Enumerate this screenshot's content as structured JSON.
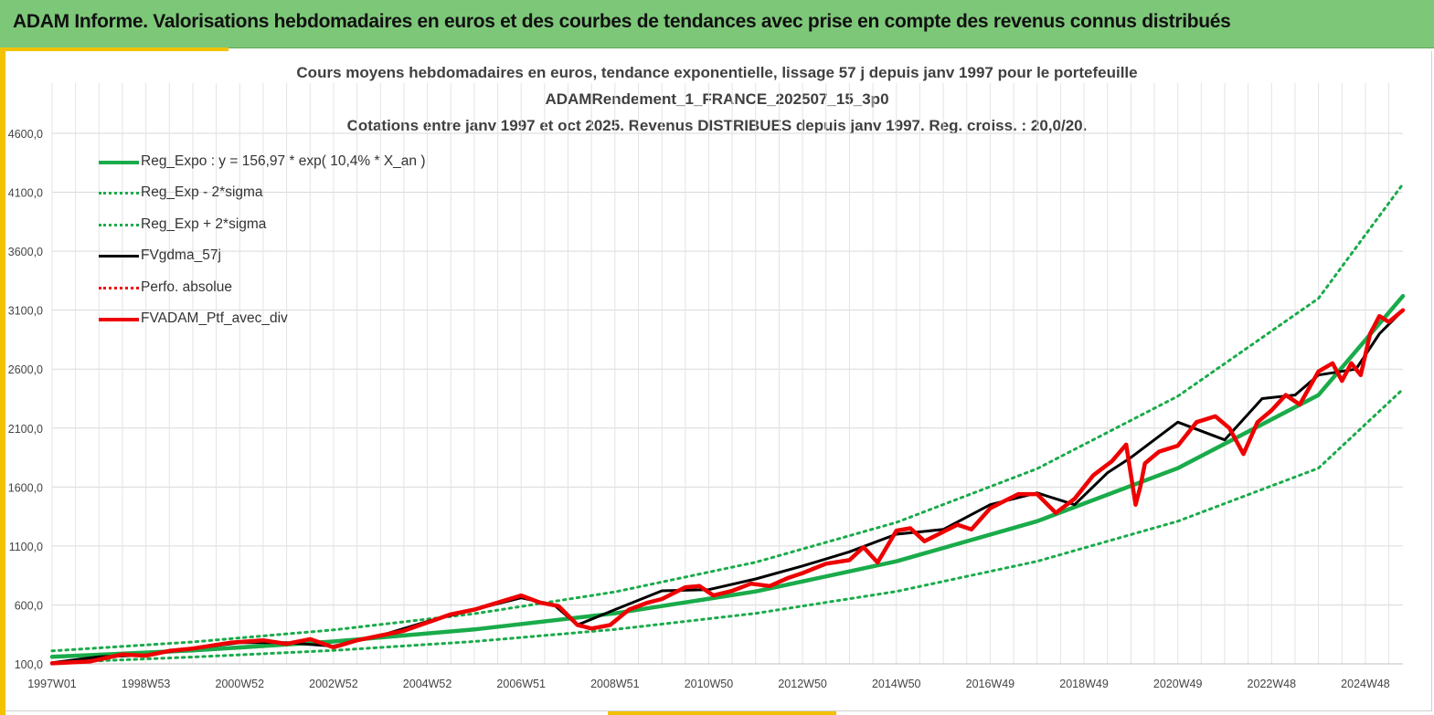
{
  "header": {
    "title": "ADAM Informe. Valorisations hebdomadaires en euros et des courbes de tendances avec prise en compte des revenus connus distribués"
  },
  "colors": {
    "banner": "#7dc779",
    "accent": "#f2c200",
    "trend": "#1aab4a",
    "smoothed": "#000000",
    "portfolio": "#ee0000"
  },
  "chart_data": {
    "type": "line",
    "title_lines": [
      "Cours moyens hebdomadaires  en euros, tendance exponentielle, lissage 57 j depuis janv 1997 pour le portefeuille",
      "ADAMRendement_1_FRANCE_202507_15_3p0",
      "Cotations  entre janv 1997 et oct 2025. Revenus DISTRIBUES depuis janv 1997. Reg. croiss. : 20,0/20."
    ],
    "x_tick_labels": [
      "1997W01",
      "1998W53",
      "2000W52",
      "2002W52",
      "2004W52",
      "2006W51",
      "2008W51",
      "2010W50",
      "2012W50",
      "2014W50",
      "2016W49",
      "2018W49",
      "2020W49",
      "2022W48",
      "2024W48"
    ],
    "x_range_years": [
      1997.0,
      2025.8
    ],
    "y_tick_labels": [
      "100,0",
      "600,0",
      "1100,0",
      "1600,0",
      "2100,0",
      "2600,0",
      "3100,0",
      "3600,0",
      "4100,0",
      "4600,0"
    ],
    "ylim": [
      100,
      4600
    ],
    "grid": true,
    "legend_position": "top-left",
    "series": [
      {
        "name": "Reg_Expo : y = 156,97 * exp( 10,4% *  X_an )",
        "style": "solid-thick",
        "color": "#1aab4a",
        "x": [
          1997,
          2000,
          2003,
          2006,
          2009,
          2012,
          2015,
          2018,
          2021,
          2024,
          2025.8
        ],
        "y": [
          160,
          214,
          290,
          392,
          528,
          714,
          970,
          1310,
          1760,
          2380,
          3220
        ]
      },
      {
        "name": "Reg_Exp - 2*sigma",
        "style": "dotted",
        "color": "#1aab4a",
        "x": [
          1997,
          2000,
          2003,
          2006,
          2009,
          2012,
          2015,
          2018,
          2021,
          2024,
          2025.8
        ],
        "y": [
          110,
          158,
          214,
          290,
          392,
          528,
          714,
          970,
          1310,
          1760,
          2430
        ]
      },
      {
        "name": "Reg_Exp + 2*sigma",
        "style": "dotted",
        "color": "#1aab4a",
        "x": [
          1997,
          2000,
          2003,
          2006,
          2009,
          2012,
          2015,
          2018,
          2021,
          2024,
          2025.8
        ],
        "y": [
          210,
          286,
          388,
          525,
          710,
          962,
          1300,
          1755,
          2370,
          3200,
          4170
        ]
      },
      {
        "name": "FVgdma_57j",
        "style": "solid",
        "color": "#000000",
        "x": [
          1997,
          1998,
          1999,
          2000,
          2001,
          2002,
          2003,
          2004,
          2005,
          2006,
          2007,
          2007.7,
          2008.2,
          2009,
          2010,
          2011,
          2012,
          2013,
          2014,
          2015,
          2016,
          2017,
          2018,
          2018.8,
          2019.5,
          2020,
          2021,
          2022,
          2022.8,
          2023.5,
          2024,
          2024.8,
          2025.3,
          2025.8
        ],
        "y": [
          110,
          160,
          175,
          230,
          280,
          280,
          250,
          340,
          460,
          560,
          660,
          600,
          430,
          560,
          720,
          730,
          820,
          930,
          1050,
          1200,
          1240,
          1450,
          1550,
          1450,
          1720,
          1850,
          2150,
          2000,
          2350,
          2380,
          2550,
          2600,
          2900,
          3100
        ]
      },
      {
        "name": "Perfo. absolue",
        "style": "dotted",
        "color": "#ee0000",
        "x": [],
        "y": []
      },
      {
        "name": "FVADAM_Ptf_avec_div",
        "style": "solid-thick",
        "color": "#ee0000",
        "x": [
          1997,
          1997.8,
          1998.5,
          1999,
          1999.5,
          2000,
          2000.8,
          2001.5,
          2002,
          2002.5,
          2003,
          2003.5,
          2004,
          2004.5,
          2005,
          2005.5,
          2006,
          2006.5,
          2007,
          2007.4,
          2007.8,
          2008.2,
          2008.5,
          2008.9,
          2009.3,
          2009.7,
          2010,
          2010.5,
          2010.8,
          2011.1,
          2011.5,
          2011.9,
          2012.3,
          2012.7,
          2013,
          2013.5,
          2014,
          2014.3,
          2014.6,
          2015,
          2015.3,
          2015.6,
          2016,
          2016.3,
          2016.6,
          2017,
          2017.3,
          2017.6,
          2018,
          2018.4,
          2018.8,
          2019.2,
          2019.6,
          2019.9,
          2020.1,
          2020.2,
          2020.3,
          2020.6,
          2021,
          2021.4,
          2021.8,
          2022.1,
          2022.4,
          2022.7,
          2023,
          2023.3,
          2023.6,
          2024,
          2024.3,
          2024.5,
          2024.7,
          2024.9,
          2025.1,
          2025.3,
          2025.5,
          2025.8
        ],
        "y": [
          105,
          120,
          180,
          170,
          210,
          230,
          280,
          300,
          270,
          310,
          240,
          300,
          340,
          380,
          450,
          520,
          560,
          620,
          680,
          620,
          590,
          430,
          400,
          430,
          560,
          620,
          650,
          750,
          760,
          680,
          720,
          780,
          760,
          830,
          870,
          950,
          980,
          1090,
          960,
          1230,
          1250,
          1140,
          1220,
          1280,
          1240,
          1420,
          1480,
          1540,
          1540,
          1380,
          1500,
          1700,
          1820,
          1960,
          1450,
          1600,
          1800,
          1900,
          1950,
          2150,
          2200,
          2100,
          1880,
          2150,
          2250,
          2380,
          2300,
          2580,
          2650,
          2500,
          2650,
          2550,
          2900,
          3050,
          3000,
          3100
        ]
      }
    ]
  }
}
